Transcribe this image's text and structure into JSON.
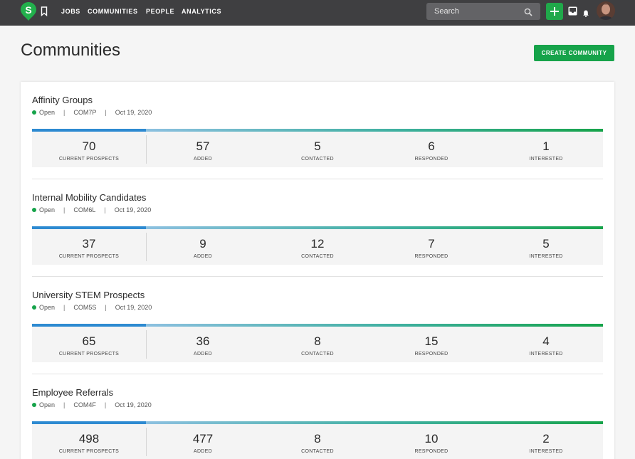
{
  "nav": {
    "links": [
      "JOBS",
      "COMMUNITIES",
      "PEOPLE",
      "ANALYTICS"
    ],
    "search_placeholder": "Search",
    "logo_letter": "S"
  },
  "header": {
    "title": "Communities",
    "create_label": "CREATE COMMUNITY"
  },
  "colors": {
    "accent_green": "#16a34a",
    "accent_blue": "#2d8ad1",
    "topbar": "#3f3f41"
  },
  "stat_labels": [
    "CURRENT PROSPECTS",
    "ADDED",
    "CONTACTED",
    "RESPONDED",
    "INTERESTED"
  ],
  "communities": [
    {
      "name": "Affinity Groups",
      "status": "Open",
      "code": "COM7P",
      "date": "Oct 19, 2020",
      "stats": [
        "70",
        "57",
        "5",
        "6",
        "1"
      ]
    },
    {
      "name": "Internal Mobility Candidates",
      "status": "Open",
      "code": "COM6L",
      "date": "Oct 19, 2020",
      "stats": [
        "37",
        "9",
        "12",
        "7",
        "5"
      ]
    },
    {
      "name": "University STEM Prospects",
      "status": "Open",
      "code": "COM5S",
      "date": "Oct 19, 2020",
      "stats": [
        "65",
        "36",
        "8",
        "15",
        "4"
      ]
    },
    {
      "name": "Employee Referrals",
      "status": "Open",
      "code": "COM4F",
      "date": "Oct 19, 2020",
      "stats": [
        "498",
        "477",
        "8",
        "10",
        "2"
      ]
    }
  ]
}
